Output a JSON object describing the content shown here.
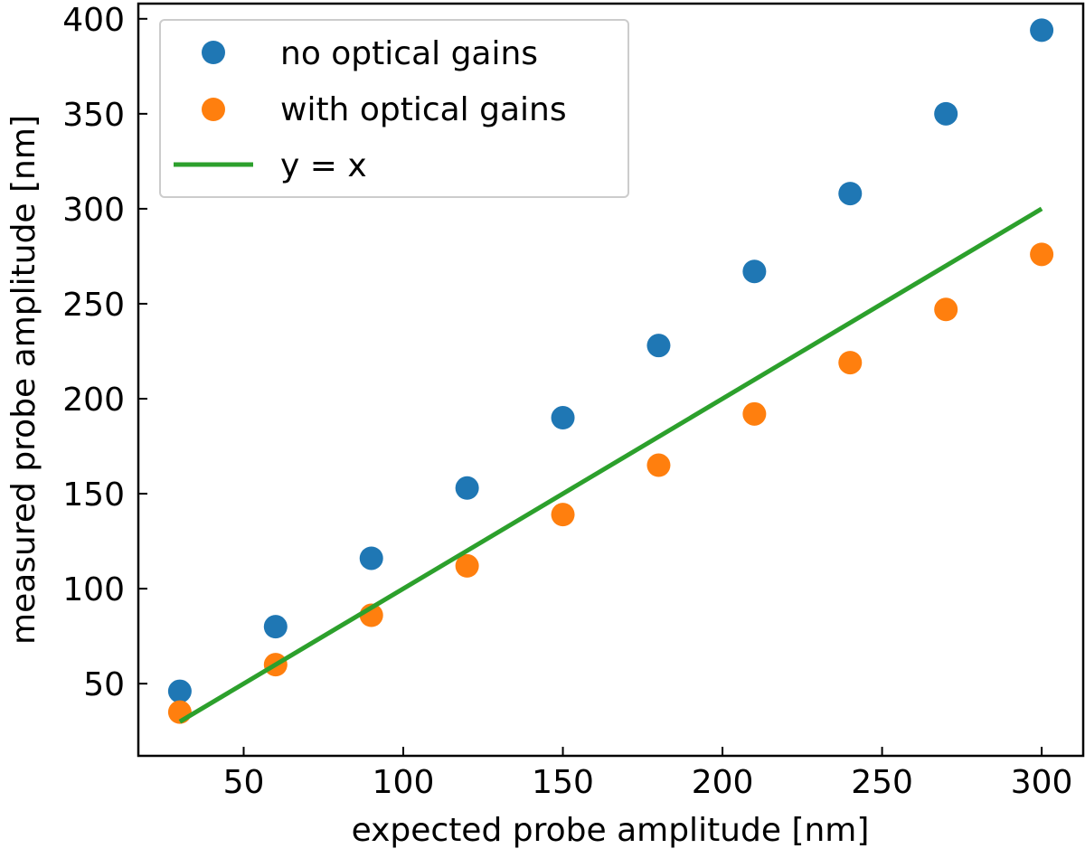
{
  "chart_data": {
    "type": "scatter",
    "title": "",
    "xlabel": "expected probe amplitude [nm]",
    "ylabel": "measured probe amplitude [nm]",
    "xlim": [
      17,
      313
    ],
    "ylim": [
      12,
      408
    ],
    "xticks": [
      50,
      100,
      150,
      200,
      250,
      300
    ],
    "yticks": [
      50,
      100,
      150,
      200,
      250,
      300,
      350,
      400
    ],
    "grid": false,
    "legend_position": "top-left",
    "series": [
      {
        "name": "no optical gains",
        "kind": "scatter",
        "color": "#1f77b4",
        "x": [
          30,
          60,
          90,
          120,
          150,
          180,
          210,
          240,
          270,
          300
        ],
        "y": [
          46,
          80,
          116,
          153,
          190,
          228,
          267,
          308,
          350,
          394
        ]
      },
      {
        "name": "with optical gains",
        "kind": "scatter",
        "color": "#ff7f0e",
        "x": [
          30,
          60,
          90,
          120,
          150,
          180,
          210,
          240,
          270,
          300
        ],
        "y": [
          35,
          60,
          86,
          112,
          139,
          165,
          192,
          219,
          247,
          276
        ]
      },
      {
        "name": "y = x",
        "kind": "line",
        "color": "#2ca02c",
        "x": [
          30,
          300
        ],
        "y": [
          30,
          300
        ]
      }
    ]
  }
}
